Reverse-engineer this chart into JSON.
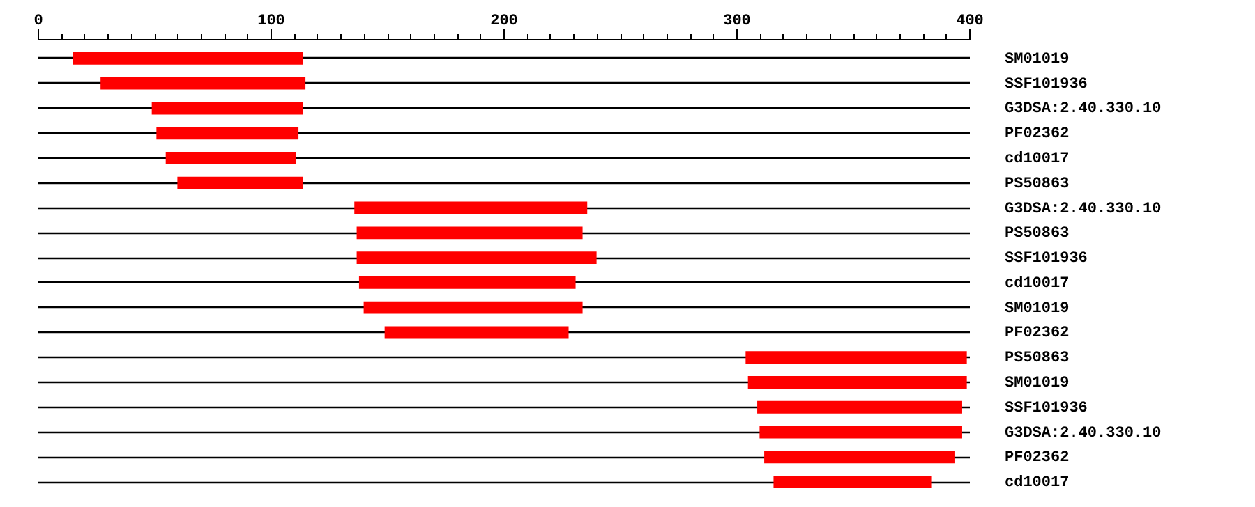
{
  "chart_data": {
    "type": "bar",
    "orientation": "horizontal",
    "categories": [
      "SM01019",
      "SSF101936",
      "G3DSA:2.40.330.10",
      "PF02362",
      "cd10017",
      "PS50863",
      "G3DSA:2.40.330.10",
      "PS50863",
      "SSF101936",
      "cd10017",
      "SM01019",
      "PF02362",
      "PS50863",
      "SM01019",
      "SSF101936",
      "G3DSA:2.40.330.10",
      "PF02362",
      "cd10017"
    ],
    "base": [
      15,
      27,
      49,
      51,
      55,
      60,
      136,
      137,
      137,
      138,
      140,
      149,
      304,
      305,
      309,
      310,
      312,
      316
    ],
    "values": [
      99,
      88,
      65,
      61,
      56,
      54,
      100,
      97,
      103,
      93,
      94,
      79,
      95,
      94,
      88,
      87,
      82,
      68
    ],
    "color": "#ff0000",
    "xlim": [
      0,
      400
    ],
    "xticks": [
      0,
      {
        "value": 10,
        "label": null
      },
      {
        "value": 20,
        "label": null
      },
      {
        "value": 30,
        "label": null
      },
      {
        "value": 40,
        "label": null
      },
      {
        "value": 50,
        "label": null
      },
      {
        "value": 60,
        "label": null
      },
      {
        "value": 70,
        "label": null
      },
      {
        "value": 80,
        "label": null
      },
      {
        "value": 90,
        "label": null
      },
      100,
      {
        "value": 110,
        "label": null
      },
      {
        "value": 120,
        "label": null
      },
      {
        "value": 130,
        "label": null
      },
      {
        "value": 140,
        "label": null
      },
      {
        "value": 150,
        "label": null
      },
      {
        "value": 160,
        "label": null
      },
      {
        "value": 170,
        "label": null
      },
      {
        "value": 180,
        "label": null
      },
      {
        "value": 190,
        "label": null
      },
      200,
      {
        "value": 210,
        "label": null
      },
      {
        "value": 220,
        "label": null
      },
      {
        "value": 230,
        "label": null
      },
      {
        "value": 240,
        "label": null
      },
      {
        "value": 250,
        "label": null
      },
      {
        "value": 260,
        "label": null
      },
      {
        "value": 270,
        "label": null
      },
      {
        "value": 280,
        "label": null
      },
      {
        "value": 290,
        "label": null
      },
      300,
      {
        "value": 310,
        "label": null
      },
      {
        "value": 320,
        "label": null
      },
      {
        "value": 330,
        "label": null
      },
      {
        "value": 340,
        "label": null
      },
      {
        "value": 350,
        "label": null
      },
      {
        "value": 360,
        "label": null
      },
      {
        "value": 370,
        "label": null
      },
      {
        "value": 380,
        "label": null
      },
      {
        "value": 390,
        "label": null
      },
      400
    ],
    "grid": "y"
  }
}
